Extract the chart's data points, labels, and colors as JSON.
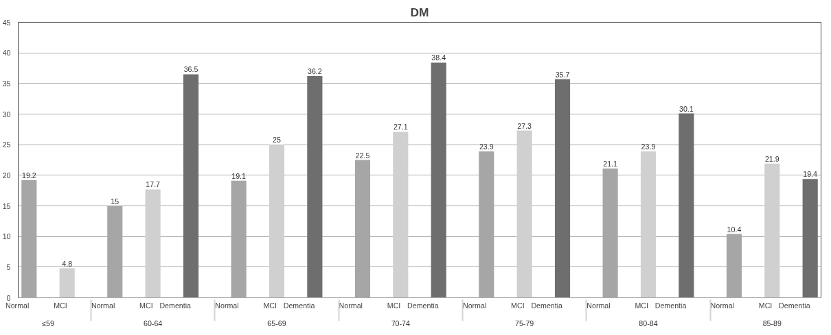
{
  "chart_data": {
    "type": "bar",
    "title": "DM",
    "categories": [
      "≤59",
      "60-64",
      "65-69",
      "70-74",
      "75-79",
      "80-84",
      "85-89"
    ],
    "series": [
      {
        "name": "Normal",
        "color": "#a6a6a6",
        "values": [
          19.2,
          15,
          19.1,
          22.5,
          23.9,
          21.1,
          10.4
        ]
      },
      {
        "name": "MCI",
        "color": "#d0d0d0",
        "values": [
          4.8,
          17.7,
          25,
          27.1,
          27.3,
          23.9,
          21.9
        ]
      },
      {
        "name": "Dementia",
        "color": "#6e6e6e",
        "values": [
          null,
          36.5,
          36.2,
          38.4,
          35.7,
          30.1,
          19.4
        ]
      }
    ],
    "ylim": [
      0,
      45
    ],
    "yticks": [
      0,
      5,
      10,
      15,
      20,
      25,
      30,
      35,
      40,
      45
    ],
    "grid": "y",
    "data_labels": true
  }
}
